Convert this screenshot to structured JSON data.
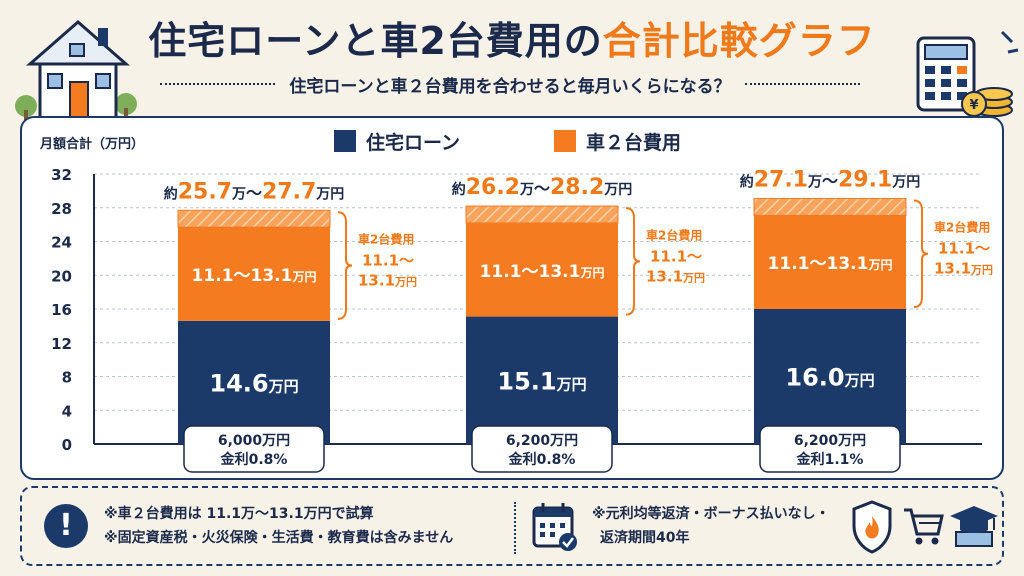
{
  "header": {
    "title_main": "住宅ローンと車2台費用の",
    "title_accent": "合計比較グラフ",
    "subtitle": "住宅ローンと車２台費用を合わせると毎月いくらになる？"
  },
  "colors": {
    "loan": "#1b3a6a",
    "car": "#f47b20",
    "car_range": "#f7a35c",
    "accent": "#f07a1a"
  },
  "icons": [
    "house-icon",
    "calculator-icon",
    "coins-icon",
    "exclamation-icon",
    "calendar-icon",
    "shield-fire-icon",
    "cart-icon",
    "graduation-cap-icon"
  ],
  "chart_data": {
    "type": "bar",
    "stacked": true,
    "ylabel": "月額合計（万円）",
    "ylim": [
      0,
      32
    ],
    "yticks": [
      "0",
      "4",
      "8",
      "12",
      "16",
      "20",
      "24",
      "28",
      "32"
    ],
    "grid": true,
    "legend_position": "top-center",
    "legend": [
      "住宅ローン",
      "車２台費用"
    ],
    "categories": [
      {
        "line1": "6,000万円",
        "line2": "金利0.8%"
      },
      {
        "line1": "6,200万円",
        "line2": "金利0.8%"
      },
      {
        "line1": "6,200万円",
        "line2": "金利1.1%"
      }
    ],
    "series": [
      {
        "name": "住宅ローン",
        "values": [
          14.6,
          15.1,
          16.0
        ]
      },
      {
        "name": "車２台費用",
        "values_min": [
          11.1,
          11.1,
          11.1
        ],
        "values_max": [
          13.1,
          13.1,
          13.1
        ]
      }
    ],
    "loan_labels": [
      "14.6",
      "15.1",
      "16.0"
    ],
    "loan_unit": "万円",
    "car_label": "11.1～13.1",
    "car_unit": "万円",
    "side_label_title": "車2台費用",
    "side_label_line1": "11.1～",
    "side_label_line2": "13.1",
    "side_label_unit": "万円",
    "totals": [
      {
        "prefix": "約",
        "min": "25.7",
        "max": "27.7",
        "unit": "万",
        "tilde": "～",
        "unit2": "万円"
      },
      {
        "prefix": "約",
        "min": "26.2",
        "max": "28.2",
        "unit": "万",
        "tilde": "～",
        "unit2": "万円"
      },
      {
        "prefix": "約",
        "min": "27.1",
        "max": "29.1",
        "unit": "万",
        "tilde": "～",
        "unit2": "万円"
      }
    ]
  },
  "notes": {
    "left_1": "※車２台費用は 11.1万～13.1万円で試算",
    "left_2": "※固定資産税・火災保険・生活費・教育費は含みません",
    "right_1": "※元利均等返済・ボーナス払いなし・",
    "right_2": "返済期間40年"
  }
}
